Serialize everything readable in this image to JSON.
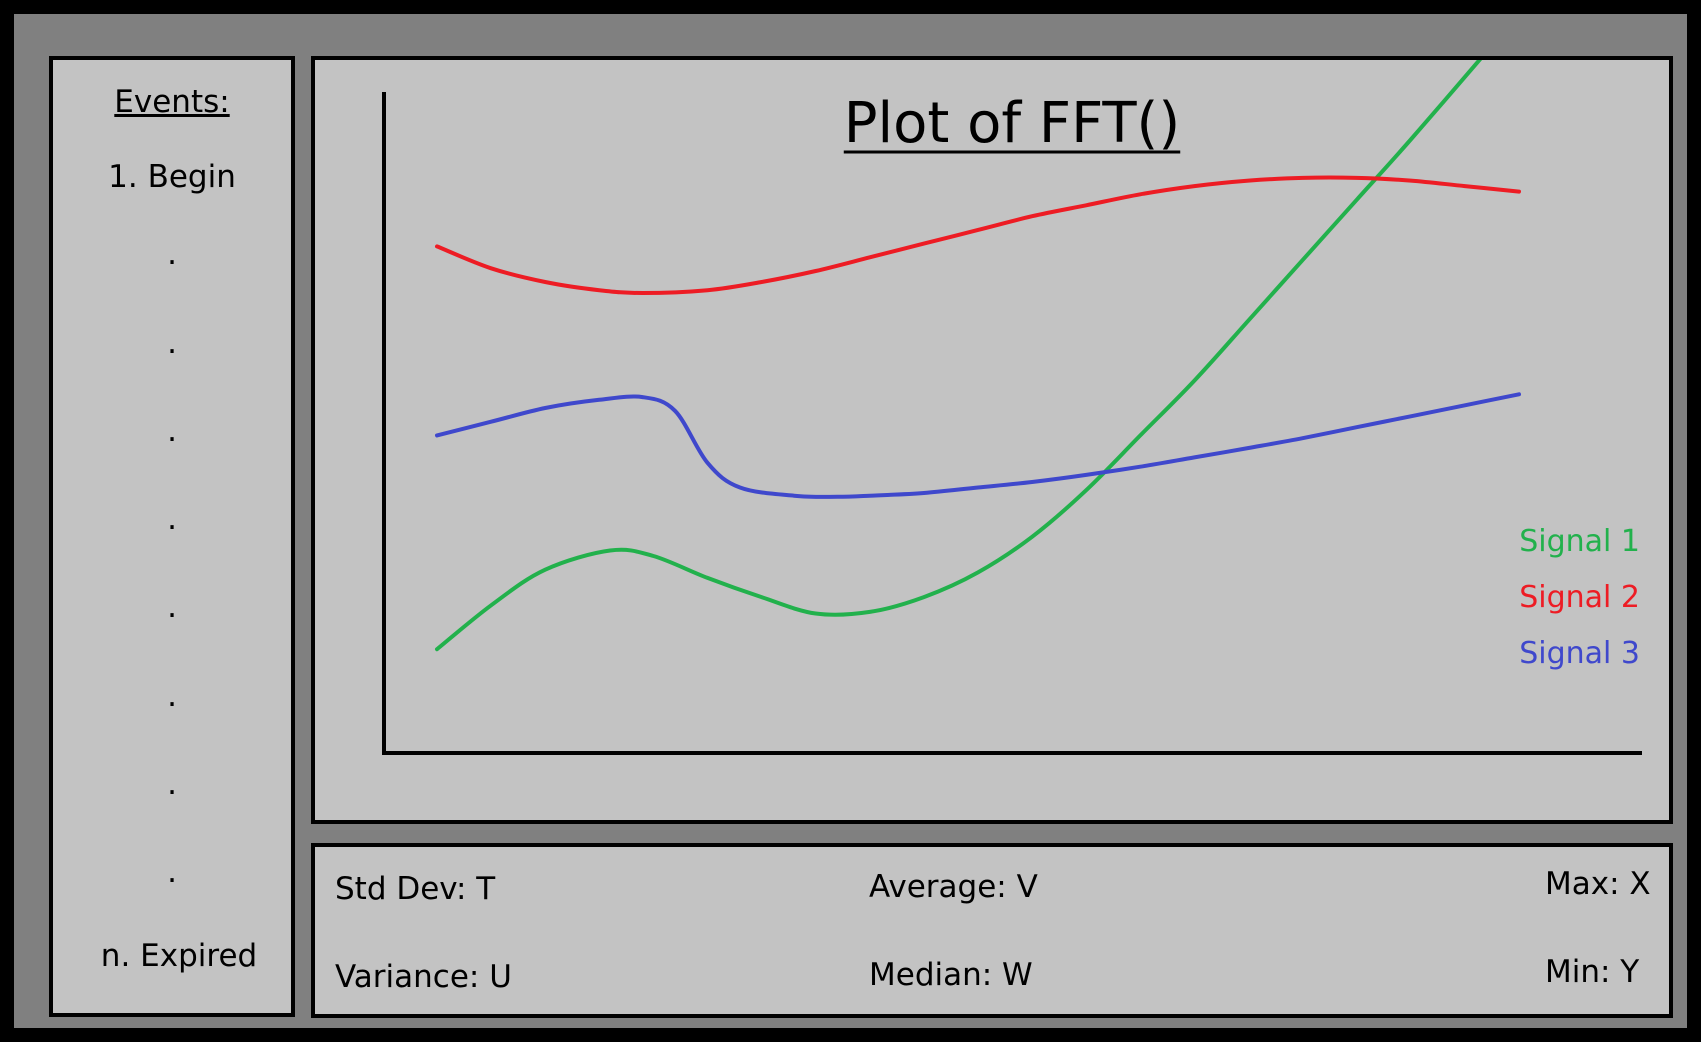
{
  "sidebar": {
    "heading": "Events:",
    "items": [
      {
        "label": "1. Begin"
      },
      {
        "label": "."
      },
      {
        "label": "."
      },
      {
        "label": "."
      },
      {
        "label": "."
      },
      {
        "label": "."
      },
      {
        "label": "."
      },
      {
        "label": "."
      },
      {
        "label": "."
      },
      {
        "label": "n. Expired"
      }
    ]
  },
  "chart_data": {
    "type": "line",
    "title": "Plot of FFT()",
    "xlabel": "",
    "ylabel": "",
    "xlim": [
      0,
      100
    ],
    "ylim": [
      0,
      100
    ],
    "grid": false,
    "legend_position": "bottom-right",
    "series": [
      {
        "name": "Signal 1",
        "color": "#22b14c",
        "x": [
          0,
          5,
          10,
          16,
          20,
          25,
          30,
          35,
          40,
          45,
          50,
          55,
          60,
          65,
          70,
          75,
          80,
          85,
          90,
          97
        ],
        "y": [
          8,
          16,
          22.5,
          26,
          25,
          21,
          17.5,
          14.5,
          14.8,
          17.5,
          22,
          28.5,
          37,
          47,
          57,
          68,
          79,
          90,
          101,
          117
        ]
      },
      {
        "name": "Signal 2",
        "color": "#ed1c24",
        "x": [
          0,
          5,
          10,
          15,
          19,
          25,
          30,
          35,
          40,
          45,
          50,
          55,
          60,
          65,
          70,
          75,
          80,
          85,
          90,
          95,
          100
        ],
        "y": [
          81.5,
          77.5,
          75,
          73.5,
          73,
          73.5,
          75,
          77,
          79.5,
          82,
          84.5,
          87,
          89,
          91,
          92.5,
          93.5,
          94,
          94,
          93.5,
          92.5,
          91.5
        ]
      },
      {
        "name": "Signal 3",
        "color": "#3f48cc",
        "x": [
          0,
          5,
          10,
          15,
          19,
          22,
          25,
          28,
          33,
          37,
          40,
          45,
          50,
          55,
          60,
          65,
          70,
          75,
          80,
          85,
          90,
          95,
          100
        ],
        "y": [
          47,
          49.5,
          52,
          53.5,
          54,
          51.5,
          42,
          37.5,
          36,
          35.8,
          36,
          36.5,
          37.5,
          38.5,
          39.8,
          41.3,
          43,
          44.7,
          46.5,
          48.5,
          50.5,
          52.5,
          54.5
        ]
      }
    ]
  },
  "stats": {
    "std_dev": "Std Dev: T",
    "variance": "Variance: U",
    "average": "Average: V",
    "median": "Median: W",
    "max": "Max: X",
    "min": "Min: Y"
  }
}
